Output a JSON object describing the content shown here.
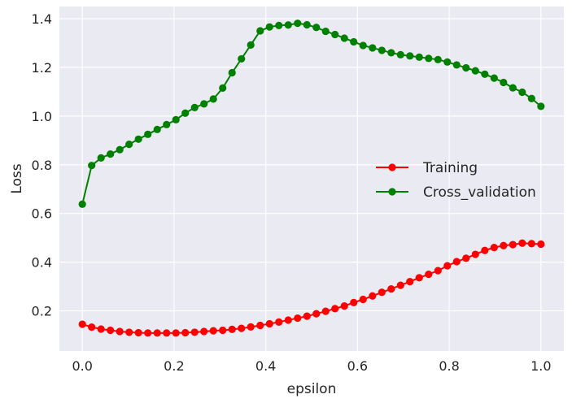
{
  "chart_data": {
    "type": "line",
    "xlabel": "epsilon",
    "ylabel": "Loss",
    "xlim": [
      -0.05,
      1.05
    ],
    "ylim": [
      0.035,
      1.45
    ],
    "xticks": [
      0.0,
      0.2,
      0.4,
      0.6,
      0.8,
      1.0
    ],
    "yticks": [
      0.2,
      0.4,
      0.6,
      0.8,
      1.0,
      1.2,
      1.4
    ],
    "grid": true,
    "legend_position": "center-right",
    "x": [
      0.0,
      0.0204,
      0.0408,
      0.0612,
      0.0816,
      0.102,
      0.1224,
      0.1429,
      0.1633,
      0.1837,
      0.2041,
      0.2245,
      0.2449,
      0.2653,
      0.2857,
      0.3061,
      0.3265,
      0.3469,
      0.3673,
      0.3878,
      0.4082,
      0.4286,
      0.449,
      0.4694,
      0.4898,
      0.5102,
      0.5306,
      0.551,
      0.5714,
      0.5918,
      0.6122,
      0.6327,
      0.6531,
      0.6735,
      0.6939,
      0.7143,
      0.7347,
      0.7551,
      0.7755,
      0.7959,
      0.8163,
      0.8367,
      0.8571,
      0.8776,
      0.898,
      0.9184,
      0.9388,
      0.9592,
      0.9796,
      1.0
    ],
    "series": [
      {
        "name": "Training",
        "color": "#ff0000",
        "values": [
          0.145,
          0.133,
          0.125,
          0.12,
          0.115,
          0.112,
          0.11,
          0.109,
          0.109,
          0.109,
          0.109,
          0.11,
          0.112,
          0.115,
          0.118,
          0.12,
          0.124,
          0.128,
          0.134,
          0.14,
          0.147,
          0.154,
          0.162,
          0.17,
          0.178,
          0.188,
          0.198,
          0.209,
          0.22,
          0.234,
          0.247,
          0.261,
          0.276,
          0.29,
          0.305,
          0.32,
          0.336,
          0.35,
          0.365,
          0.385,
          0.402,
          0.416,
          0.432,
          0.448,
          0.46,
          0.468,
          0.472,
          0.478,
          0.476,
          0.474
        ]
      },
      {
        "name": "Cross_validation",
        "color": "#008000",
        "values": [
          0.638,
          0.797,
          0.828,
          0.844,
          0.862,
          0.884,
          0.905,
          0.925,
          0.945,
          0.965,
          0.985,
          1.012,
          1.035,
          1.05,
          1.07,
          1.115,
          1.178,
          1.235,
          1.292,
          1.35,
          1.366,
          1.372,
          1.374,
          1.381,
          1.375,
          1.364,
          1.348,
          1.335,
          1.32,
          1.305,
          1.29,
          1.28,
          1.27,
          1.26,
          1.252,
          1.247,
          1.242,
          1.237,
          1.232,
          1.222,
          1.21,
          1.198,
          1.186,
          1.172,
          1.156,
          1.138,
          1.116,
          1.098,
          1.072,
          1.04
        ]
      }
    ]
  }
}
